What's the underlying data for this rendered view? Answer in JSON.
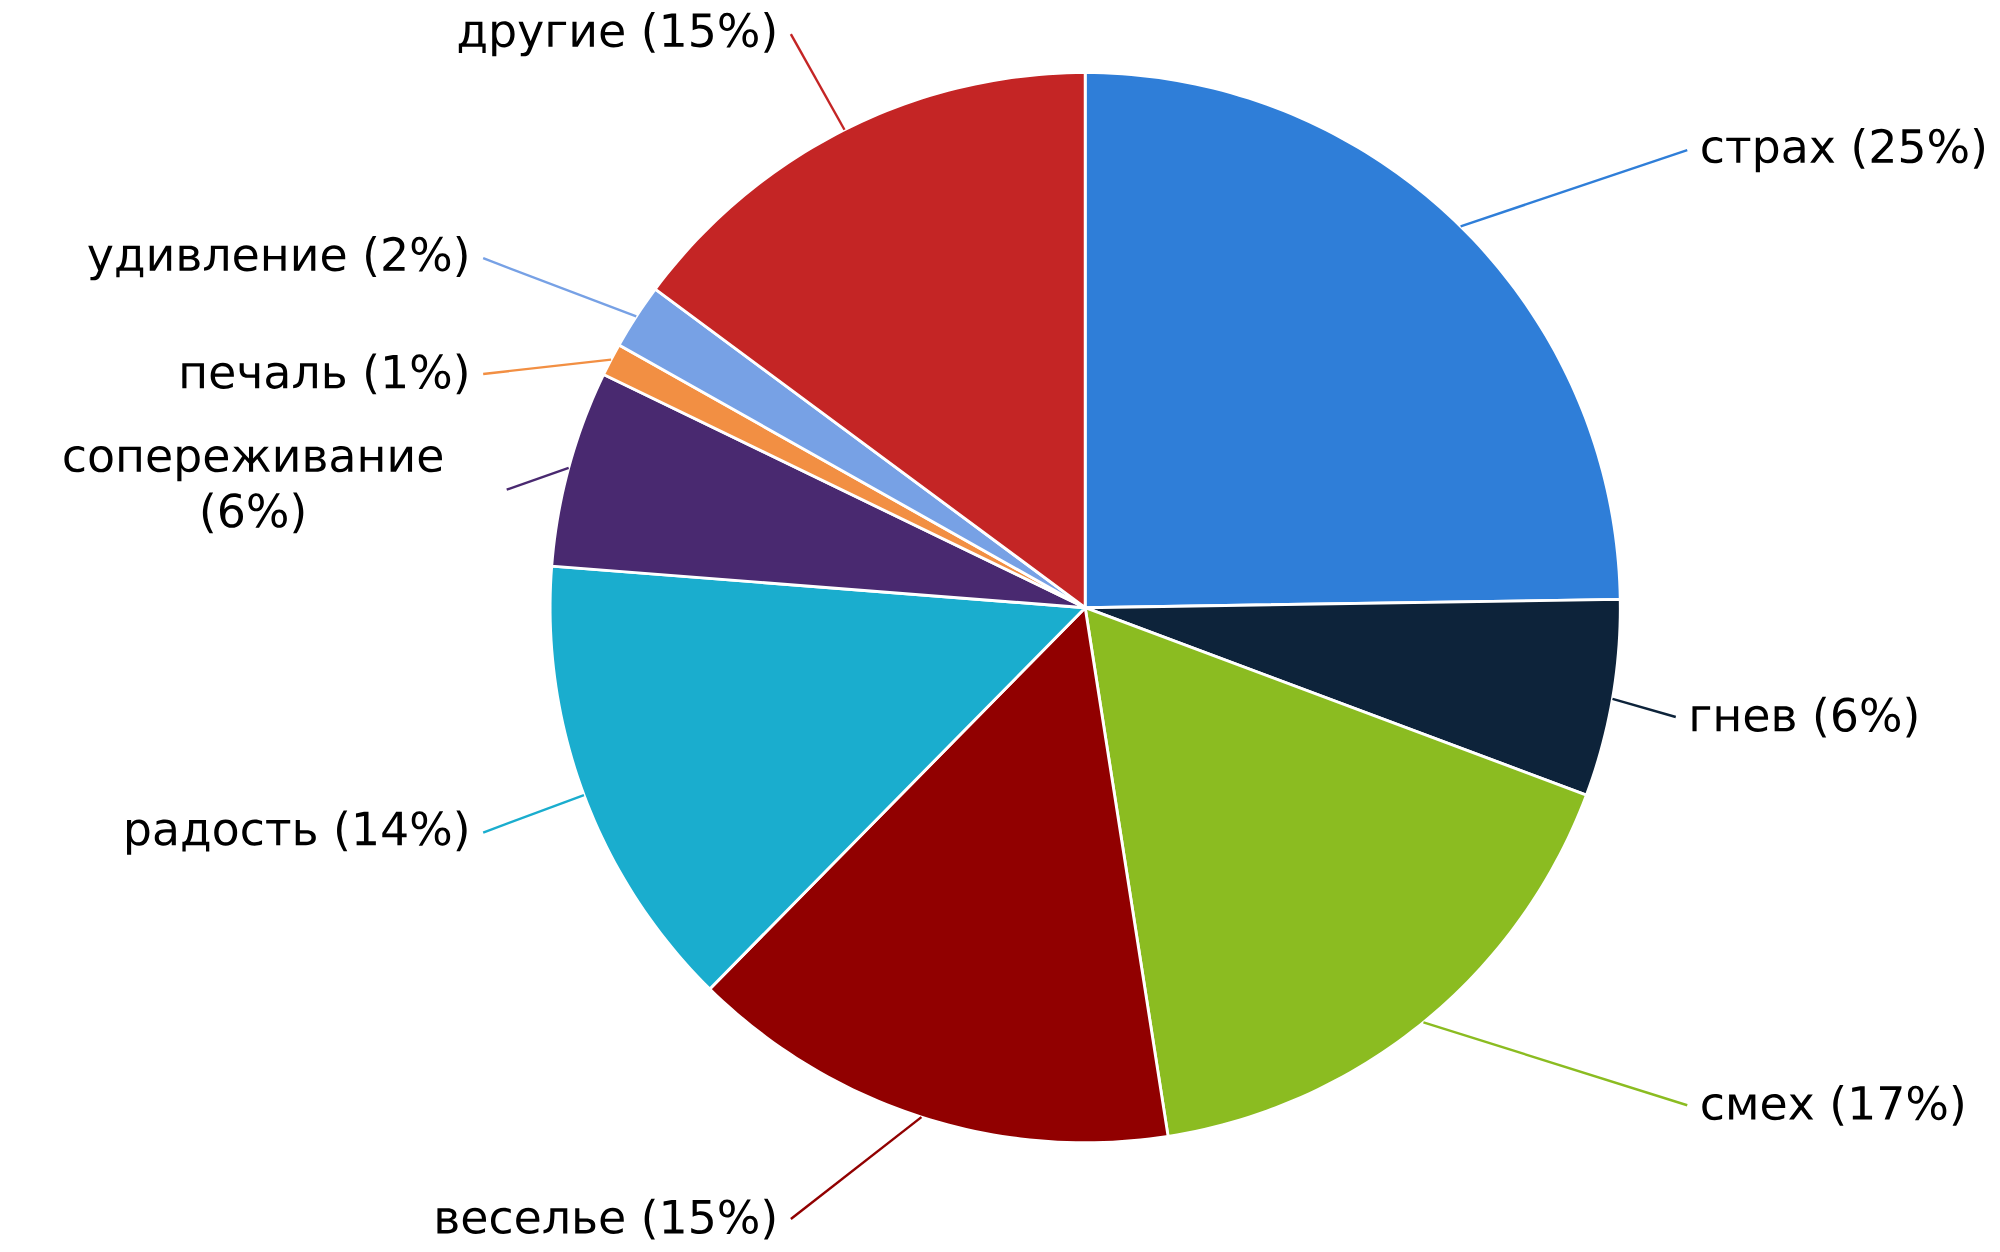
{
  "chart_data": {
    "type": "pie",
    "categories": [
      "страх (25%)",
      "гнев (6%)",
      "смех (17%)",
      "веселье (15%)",
      "радость (14%)",
      "сопереживание (6%)",
      "печаль (1%)",
      "удивление (2%)",
      "другие (15%)"
    ],
    "values": [
      25,
      6,
      17,
      15,
      14,
      6,
      1,
      2,
      15
    ],
    "colors": [
      "#2f7ed8",
      "#0d233a",
      "#8bbc21",
      "#910000",
      "#1aadce",
      "#492970",
      "#f28f43",
      "#77a1e5",
      "#c42525"
    ]
  }
}
